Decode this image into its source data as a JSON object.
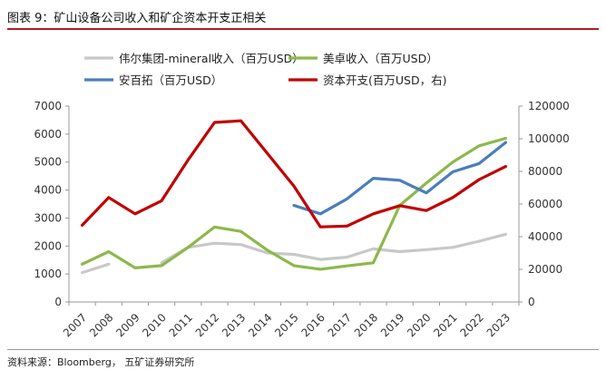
{
  "figure": {
    "title": "图表 9：矿山设备公司收入和矿企资本开支正相关",
    "source": "资料来源：Bloomberg， 五矿证券研究所"
  },
  "chart_data": {
    "type": "line",
    "categories": [
      "2007",
      "2008",
      "2009",
      "2010",
      "2011",
      "2012",
      "2013",
      "2014",
      "2015",
      "2016",
      "2017",
      "2018",
      "2019",
      "2020",
      "2021",
      "2022",
      "2023"
    ],
    "left_axis": {
      "ticks": [
        "0",
        "1000",
        "2000",
        "3000",
        "4000",
        "5000",
        "6000",
        "7000"
      ],
      "ylim": [
        0,
        7000
      ]
    },
    "right_axis": {
      "ticks": [
        "0",
        "20000",
        "40000",
        "60000",
        "80000",
        "100000",
        "120000"
      ],
      "ylim": [
        0,
        120000
      ]
    },
    "series": [
      {
        "name": "伟尔集团-mineral收入（百万USD）",
        "axis": "left",
        "color": "#c8c8c8",
        "segments": [
          {
            "start": 0,
            "values": [
              1050,
              1350
            ]
          },
          {
            "start": 3,
            "values": [
              1400,
              1950,
              2100,
              2050,
              1750,
              1700,
              1520,
              1600,
              1900,
              1800,
              1870,
              1950,
              2170,
              2420
            ]
          }
        ]
      },
      {
        "name": "美卓收入（百万USD）",
        "axis": "left",
        "color": "#8cb94b",
        "segments": [
          {
            "start": 0,
            "values": [
              1350,
              1800,
              1220,
              1300,
              1950,
              2680,
              2520,
              1850,
              1300,
              1170,
              1290,
              1400,
              3450,
              4250,
              5000,
              5580,
              5850
            ]
          }
        ]
      },
      {
        "name": "安百拓（百万USD）",
        "axis": "left",
        "color": "#4a7ebb",
        "segments": [
          {
            "start": 8,
            "values": [
              3450,
              3150,
              3680,
              4420,
              4350,
              3900,
              4650,
              4950,
              5700
            ]
          }
        ]
      },
      {
        "name": "资本开支(百万USD，右)",
        "axis": "right",
        "color": "#c00000",
        "segments": [
          {
            "start": 0,
            "values": [
              47000,
              64000,
              54000,
              62000,
              87000,
              110000,
              111000,
              91000,
              71000,
              46000,
              46500,
              54000,
              59000,
              56000,
              64000,
              75000,
              83000
            ]
          }
        ]
      }
    ]
  }
}
